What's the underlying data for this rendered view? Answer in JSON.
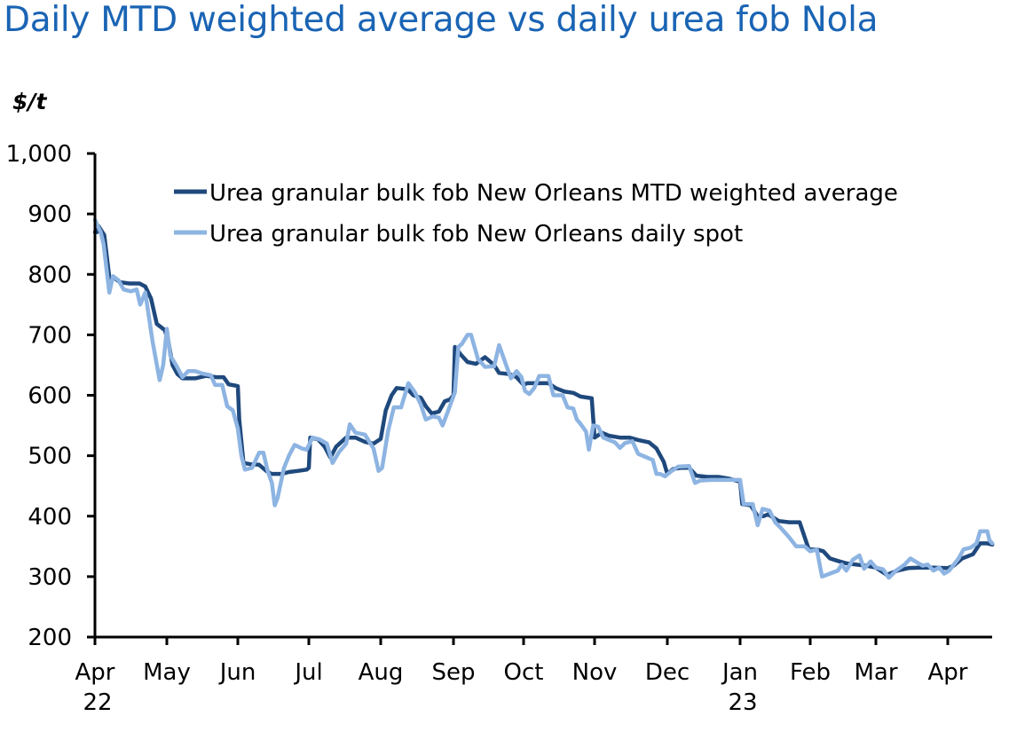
{
  "chart_data": {
    "type": "line",
    "title": "Daily MTD weighted average vs daily urea fob Nola",
    "ylabel": "$/t",
    "xlabel": "",
    "ylim": [
      200,
      1000
    ],
    "yticks": [
      200,
      300,
      400,
      500,
      600,
      700,
      800,
      900,
      1000
    ],
    "ytick_labels": [
      "200",
      "300",
      "400",
      "500",
      "600",
      "700",
      "800",
      "900",
      "1,000"
    ],
    "x_unit": "months since 1 Apr 2022",
    "xlim": [
      0,
      12.62
    ],
    "xticks": [
      0,
      1,
      2,
      3,
      4,
      5,
      6,
      7,
      8,
      9,
      10,
      11,
      12
    ],
    "xtick_labels": [
      "Apr",
      "May",
      "Jun",
      "Jul",
      "Aug",
      "Sep",
      "Oct",
      "Nov",
      "Dec",
      "Jan",
      "Feb",
      "Mar",
      "Apr"
    ],
    "xtick_sublabels": [
      "22",
      "",
      "",
      "",
      "",
      "",
      "",
      "",
      "",
      "23",
      "",
      "",
      ""
    ],
    "grid": false,
    "legend_position": "top-right",
    "series": [
      {
        "name": "Urea granular bulk fob New Orleans MTD weighted average",
        "color": "#1f497d",
        "points": [
          [
            0.0,
            870
          ],
          [
            0.03,
            870
          ],
          [
            0.05,
            880
          ],
          [
            0.13,
            865
          ],
          [
            0.2,
            795
          ],
          [
            0.28,
            793
          ],
          [
            0.35,
            787
          ],
          [
            0.48,
            785
          ],
          [
            0.62,
            785
          ],
          [
            0.7,
            780
          ],
          [
            0.78,
            760
          ],
          [
            0.86,
            718
          ],
          [
            0.97,
            708
          ],
          [
            1.02,
            690
          ],
          [
            1.08,
            650
          ],
          [
            1.15,
            635
          ],
          [
            1.22,
            628
          ],
          [
            1.4,
            628
          ],
          [
            1.55,
            632
          ],
          [
            1.7,
            630
          ],
          [
            1.8,
            630
          ],
          [
            1.87,
            618
          ],
          [
            1.97,
            616
          ],
          [
            2.0,
            615
          ],
          [
            2.02,
            560
          ],
          [
            2.08,
            488
          ],
          [
            2.18,
            486
          ],
          [
            2.3,
            485
          ],
          [
            2.4,
            475
          ],
          [
            2.47,
            470
          ],
          [
            2.62,
            470
          ],
          [
            2.72,
            473
          ],
          [
            2.85,
            475
          ],
          [
            2.97,
            477
          ],
          [
            3.0,
            480
          ],
          [
            3.02,
            530
          ],
          [
            3.13,
            527
          ],
          [
            3.22,
            515
          ],
          [
            3.3,
            497
          ],
          [
            3.38,
            515
          ],
          [
            3.52,
            530
          ],
          [
            3.65,
            530
          ],
          [
            3.78,
            523
          ],
          [
            3.9,
            520
          ],
          [
            4.0,
            528
          ],
          [
            4.07,
            575
          ],
          [
            4.15,
            600
          ],
          [
            4.22,
            612
          ],
          [
            4.37,
            610
          ],
          [
            4.45,
            600
          ],
          [
            4.55,
            596
          ],
          [
            4.62,
            582
          ],
          [
            4.7,
            570
          ],
          [
            4.8,
            573
          ],
          [
            4.88,
            590
          ],
          [
            4.95,
            593
          ],
          [
            5.0,
            600
          ],
          [
            5.02,
            680
          ],
          [
            5.1,
            668
          ],
          [
            5.2,
            655
          ],
          [
            5.32,
            652
          ],
          [
            5.45,
            663
          ],
          [
            5.58,
            650
          ],
          [
            5.65,
            637
          ],
          [
            5.8,
            635
          ],
          [
            5.9,
            630
          ],
          [
            6.0,
            617
          ],
          [
            6.05,
            620
          ],
          [
            6.2,
            620
          ],
          [
            6.35,
            620
          ],
          [
            6.45,
            612
          ],
          [
            6.58,
            606
          ],
          [
            6.7,
            604
          ],
          [
            6.8,
            598
          ],
          [
            6.96,
            595
          ],
          [
            7.0,
            530
          ],
          [
            7.1,
            538
          ],
          [
            7.2,
            533
          ],
          [
            7.35,
            530
          ],
          [
            7.48,
            530
          ],
          [
            7.6,
            526
          ],
          [
            7.75,
            522
          ],
          [
            7.85,
            512
          ],
          [
            7.95,
            490
          ],
          [
            8.0,
            470
          ],
          [
            8.08,
            478
          ],
          [
            8.18,
            480
          ],
          [
            8.3,
            480
          ],
          [
            8.4,
            467
          ],
          [
            8.55,
            465
          ],
          [
            8.7,
            465
          ],
          [
            8.85,
            462
          ],
          [
            9.0,
            457
          ],
          [
            9.03,
            420
          ],
          [
            9.15,
            418
          ],
          [
            9.25,
            400
          ],
          [
            9.33,
            400
          ],
          [
            9.4,
            403
          ],
          [
            9.55,
            392
          ],
          [
            9.7,
            390
          ],
          [
            9.85,
            390
          ],
          [
            9.98,
            345
          ],
          [
            10.1,
            345
          ],
          [
            10.2,
            342
          ],
          [
            10.3,
            330
          ],
          [
            10.42,
            326
          ],
          [
            10.55,
            322
          ],
          [
            10.7,
            320
          ],
          [
            10.85,
            318
          ],
          [
            11.0,
            315
          ],
          [
            11.15,
            303
          ],
          [
            11.3,
            310
          ],
          [
            11.45,
            314
          ],
          [
            11.6,
            315
          ],
          [
            11.8,
            315
          ],
          [
            12.0,
            314
          ],
          [
            12.08,
            318
          ],
          [
            12.2,
            330
          ],
          [
            12.35,
            337
          ],
          [
            12.45,
            355
          ],
          [
            12.55,
            355
          ],
          [
            12.62,
            353
          ]
        ]
      },
      {
        "name": "Urea granular bulk fob New Orleans daily spot",
        "color": "#8db4e2",
        "points": [
          [
            0.0,
            890
          ],
          [
            0.08,
            870
          ],
          [
            0.12,
            850
          ],
          [
            0.2,
            770
          ],
          [
            0.25,
            797
          ],
          [
            0.33,
            790
          ],
          [
            0.4,
            775
          ],
          [
            0.5,
            772
          ],
          [
            0.58,
            775
          ],
          [
            0.63,
            750
          ],
          [
            0.7,
            770
          ],
          [
            0.75,
            730
          ],
          [
            0.8,
            690
          ],
          [
            0.9,
            625
          ],
          [
            0.95,
            650
          ],
          [
            1.0,
            710
          ],
          [
            1.05,
            665
          ],
          [
            1.13,
            650
          ],
          [
            1.22,
            630
          ],
          [
            1.3,
            640
          ],
          [
            1.4,
            640
          ],
          [
            1.5,
            636
          ],
          [
            1.62,
            633
          ],
          [
            1.68,
            617
          ],
          [
            1.78,
            617
          ],
          [
            1.85,
            582
          ],
          [
            1.93,
            575
          ],
          [
            2.0,
            545
          ],
          [
            2.05,
            500
          ],
          [
            2.1,
            477
          ],
          [
            2.2,
            480
          ],
          [
            2.3,
            505
          ],
          [
            2.36,
            505
          ],
          [
            2.42,
            475
          ],
          [
            2.48,
            455
          ],
          [
            2.52,
            418
          ],
          [
            2.56,
            430
          ],
          [
            2.65,
            480
          ],
          [
            2.72,
            500
          ],
          [
            2.8,
            518
          ],
          [
            2.9,
            512
          ],
          [
            2.97,
            510
          ],
          [
            3.05,
            530
          ],
          [
            3.15,
            527
          ],
          [
            3.25,
            520
          ],
          [
            3.33,
            488
          ],
          [
            3.42,
            506
          ],
          [
            3.52,
            520
          ],
          [
            3.57,
            552
          ],
          [
            3.65,
            538
          ],
          [
            3.78,
            535
          ],
          [
            3.9,
            512
          ],
          [
            3.97,
            475
          ],
          [
            4.02,
            480
          ],
          [
            4.1,
            540
          ],
          [
            4.18,
            580
          ],
          [
            4.28,
            580
          ],
          [
            4.38,
            620
          ],
          [
            4.47,
            605
          ],
          [
            4.55,
            585
          ],
          [
            4.62,
            560
          ],
          [
            4.72,
            565
          ],
          [
            4.8,
            563
          ],
          [
            4.85,
            550
          ],
          [
            4.92,
            572
          ],
          [
            5.02,
            605
          ],
          [
            5.07,
            680
          ],
          [
            5.12,
            685
          ],
          [
            5.2,
            700
          ],
          [
            5.25,
            700
          ],
          [
            5.35,
            660
          ],
          [
            5.45,
            647
          ],
          [
            5.58,
            648
          ],
          [
            5.65,
            683
          ],
          [
            5.75,
            650
          ],
          [
            5.82,
            628
          ],
          [
            5.9,
            640
          ],
          [
            5.97,
            630
          ],
          [
            6.02,
            607
          ],
          [
            6.08,
            602
          ],
          [
            6.15,
            612
          ],
          [
            6.22,
            632
          ],
          [
            6.35,
            632
          ],
          [
            6.42,
            600
          ],
          [
            6.55,
            600
          ],
          [
            6.62,
            580
          ],
          [
            6.7,
            578
          ],
          [
            6.75,
            560
          ],
          [
            6.8,
            553
          ],
          [
            6.88,
            540
          ],
          [
            6.92,
            510
          ],
          [
            6.98,
            550
          ],
          [
            7.05,
            548
          ],
          [
            7.12,
            530
          ],
          [
            7.2,
            526
          ],
          [
            7.28,
            522
          ],
          [
            7.35,
            513
          ],
          [
            7.42,
            521
          ],
          [
            7.52,
            524
          ],
          [
            7.6,
            503
          ],
          [
            7.7,
            498
          ],
          [
            7.8,
            493
          ],
          [
            7.85,
            470
          ],
          [
            7.9,
            470
          ],
          [
            7.97,
            466
          ],
          [
            8.05,
            474
          ],
          [
            8.15,
            482
          ],
          [
            8.3,
            483
          ],
          [
            8.38,
            455
          ],
          [
            8.45,
            459
          ],
          [
            8.6,
            460
          ],
          [
            8.8,
            460
          ],
          [
            9.0,
            460
          ],
          [
            9.05,
            420
          ],
          [
            9.18,
            420
          ],
          [
            9.25,
            385
          ],
          [
            9.32,
            412
          ],
          [
            9.42,
            409
          ],
          [
            9.5,
            390
          ],
          [
            9.6,
            378
          ],
          [
            9.7,
            365
          ],
          [
            9.8,
            350
          ],
          [
            9.92,
            350
          ],
          [
            10.0,
            342
          ],
          [
            10.1,
            345
          ],
          [
            10.18,
            300
          ],
          [
            10.3,
            305
          ],
          [
            10.42,
            310
          ],
          [
            10.48,
            320
          ],
          [
            10.55,
            310
          ],
          [
            10.65,
            328
          ],
          [
            10.75,
            335
          ],
          [
            10.82,
            313
          ],
          [
            10.92,
            325
          ],
          [
            11.0,
            315
          ],
          [
            11.1,
            312
          ],
          [
            11.18,
            298
          ],
          [
            11.28,
            310
          ],
          [
            11.4,
            320
          ],
          [
            11.48,
            330
          ],
          [
            11.55,
            325
          ],
          [
            11.65,
            318
          ],
          [
            11.72,
            320
          ],
          [
            11.8,
            310
          ],
          [
            11.88,
            315
          ],
          [
            11.95,
            305
          ],
          [
            12.02,
            310
          ],
          [
            12.15,
            330
          ],
          [
            12.22,
            345
          ],
          [
            12.32,
            348
          ],
          [
            12.4,
            355
          ],
          [
            12.45,
            375
          ],
          [
            12.55,
            375
          ],
          [
            12.58,
            360
          ],
          [
            12.62,
            355
          ]
        ]
      }
    ]
  }
}
